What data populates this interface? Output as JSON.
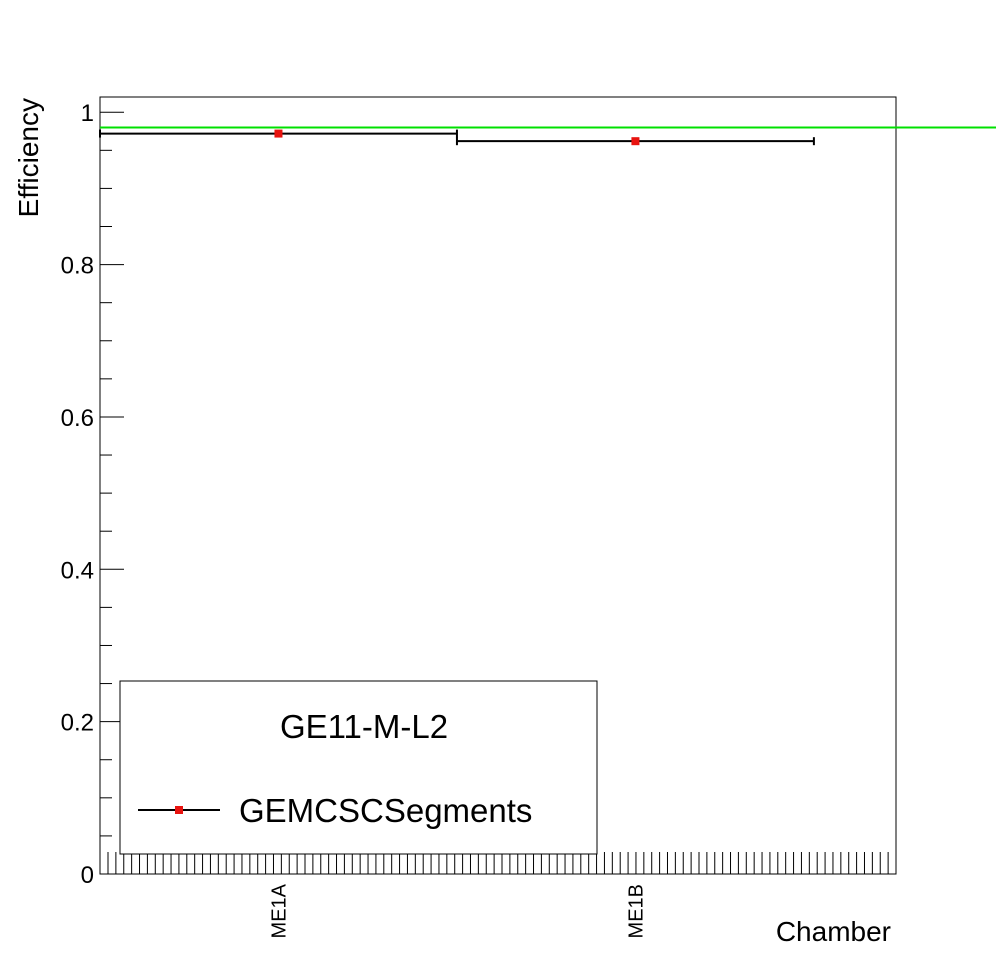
{
  "chart_data": {
    "type": "scatter",
    "title": "",
    "xlabel": "Chamber",
    "ylabel": "Efficiency",
    "categories": [
      "ME1A",
      "ME1B"
    ],
    "ylim": [
      0,
      1.02
    ],
    "yticks": [
      {
        "value": 0,
        "label": "0"
      },
      {
        "value": 0.2,
        "label": "0.2"
      },
      {
        "value": 0.4,
        "label": "0.4"
      },
      {
        "value": 0.6,
        "label": "0.6"
      },
      {
        "value": 0.8,
        "label": "0.8"
      },
      {
        "value": 1,
        "label": "1"
      }
    ],
    "series": [
      {
        "name": "GEMCSCSegments",
        "color": "#e8130f",
        "values": [
          0.972,
          0.962
        ]
      }
    ],
    "reference_line": {
      "value": 0.98,
      "color": "#00e000"
    },
    "grid": false,
    "legend": {
      "position": "bottom-left",
      "header": "GE11-M-L2"
    }
  }
}
